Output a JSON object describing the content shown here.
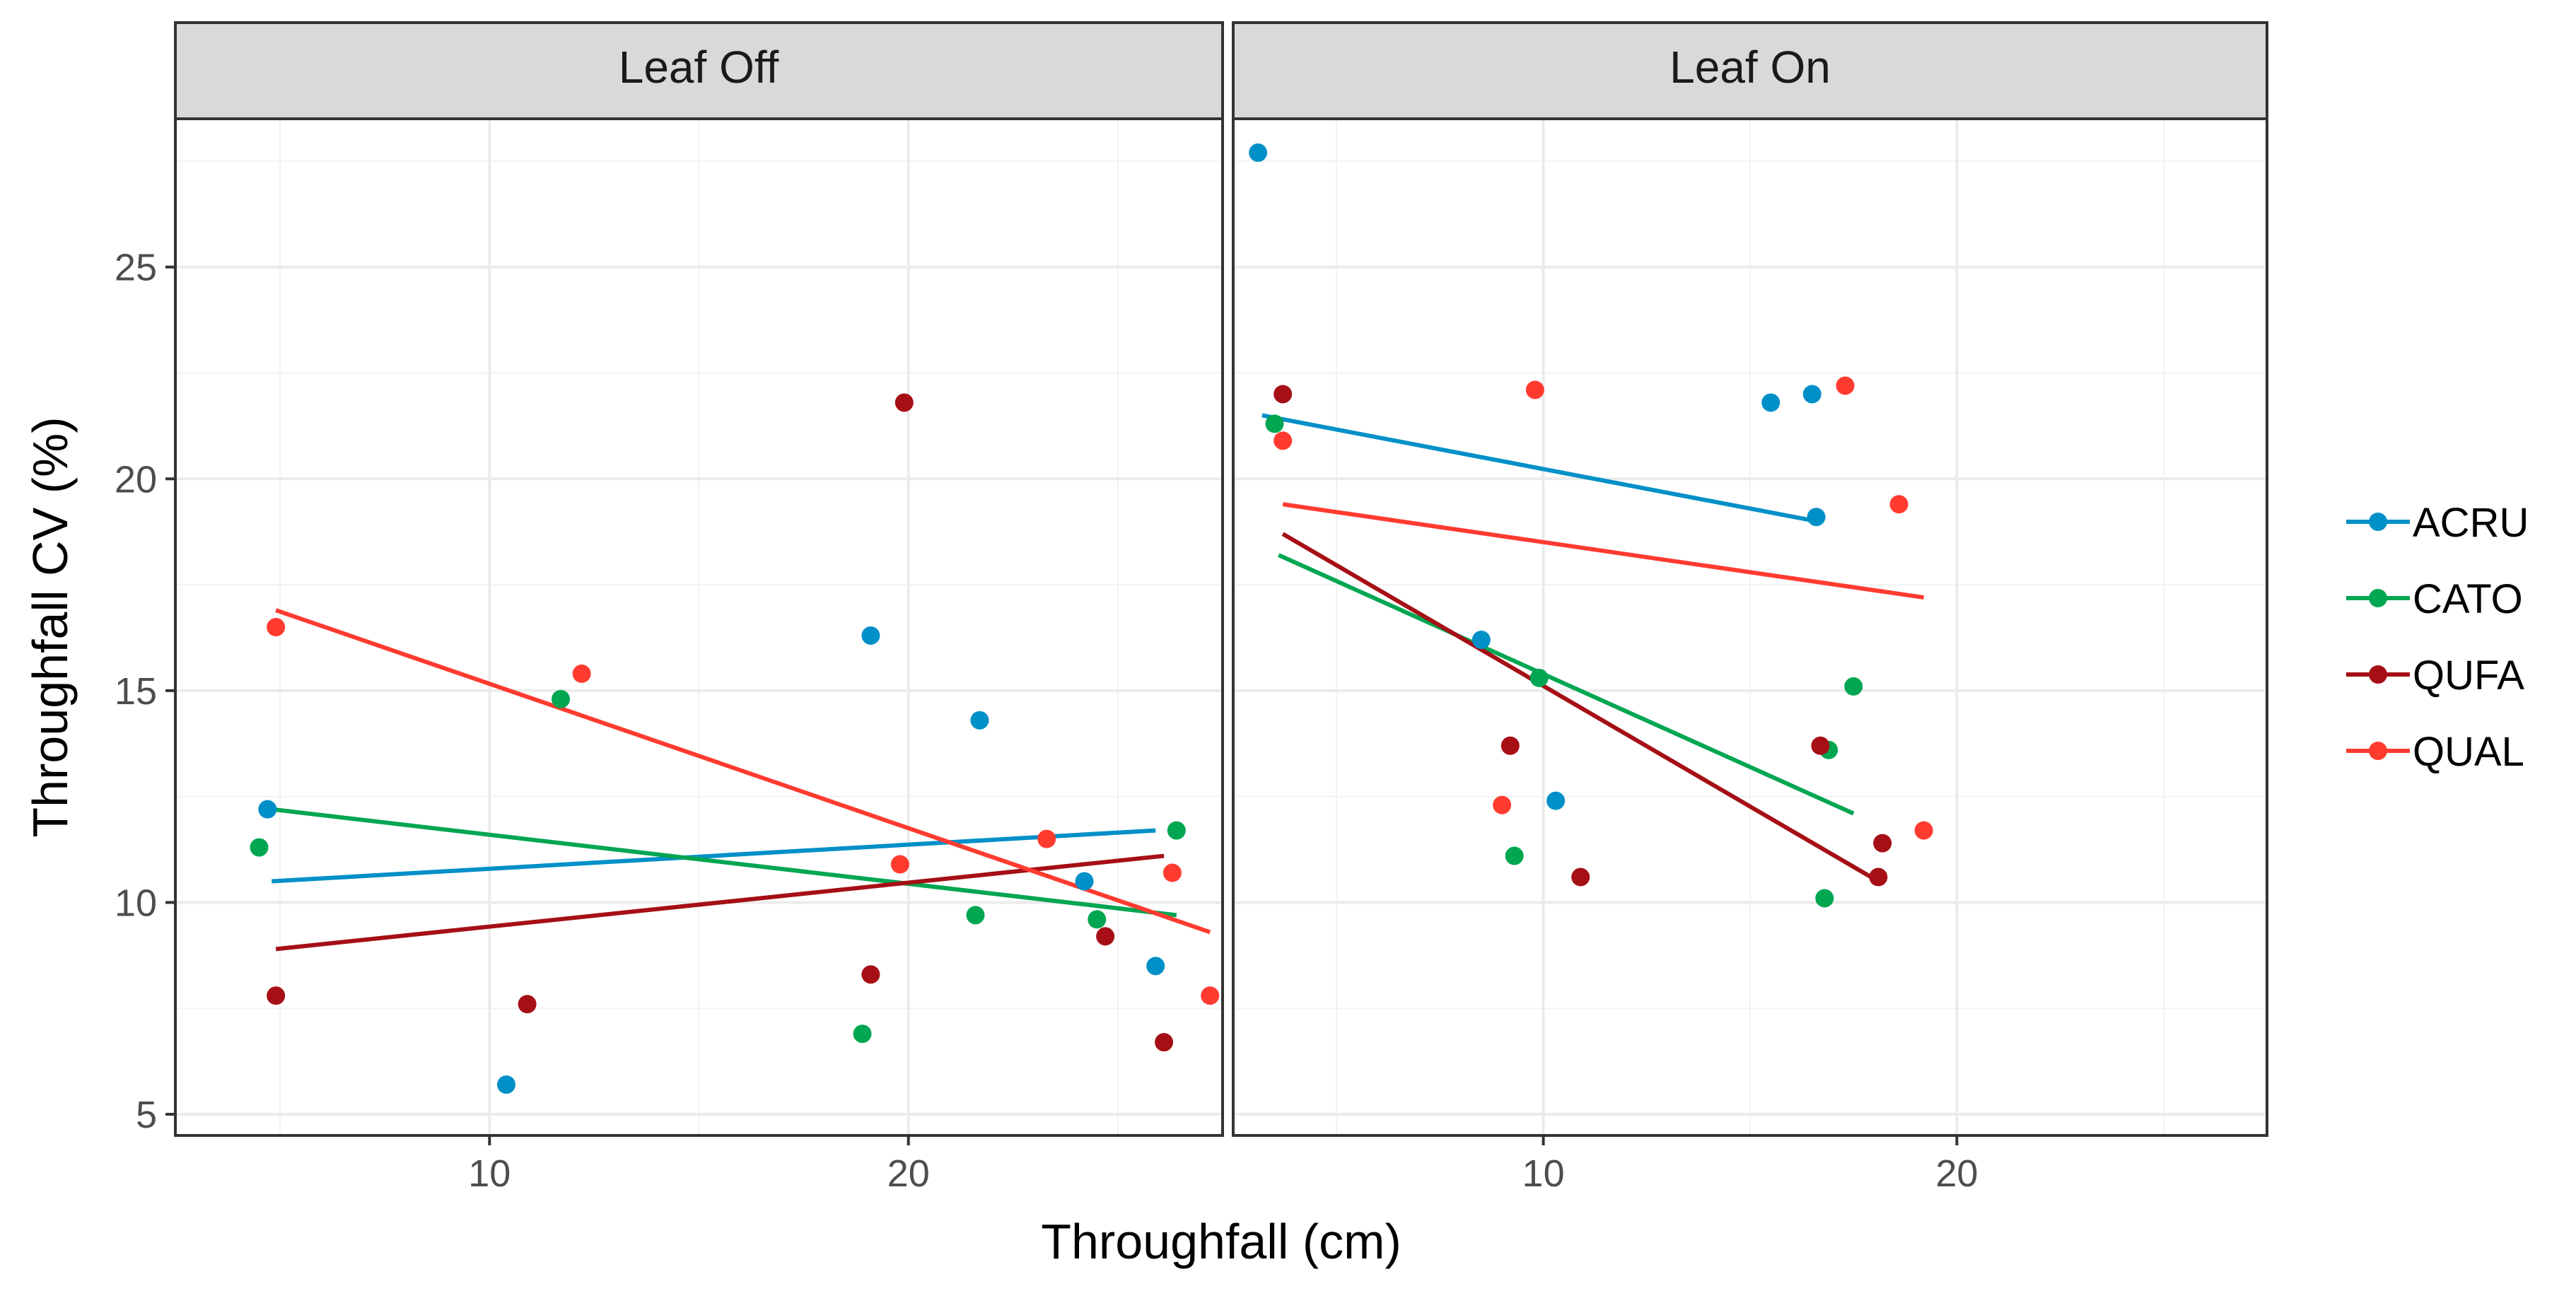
{
  "chart_data": {
    "type": "scatter",
    "xlabel": "Throughfall (cm)",
    "ylabel": "Throughfall CV (%)",
    "xlim": [
      2.5,
      27.5
    ],
    "ylim": [
      4.5,
      28.5
    ],
    "x_ticks": [
      10,
      20
    ],
    "x_tick_labels": [
      "10",
      "20"
    ],
    "y_ticks": [
      5,
      10,
      15,
      20,
      25
    ],
    "y_tick_labels": [
      "5",
      "10",
      "15",
      "20",
      "25"
    ],
    "grid": true,
    "legend_position": "right",
    "series": [
      {
        "name": "ACRU",
        "color": "#0090C8"
      },
      {
        "name": "CATO",
        "color": "#00A651"
      },
      {
        "name": "QUFA",
        "color": "#A50F15"
      },
      {
        "name": "QUAL",
        "color": "#FF3B30"
      }
    ],
    "panels": [
      {
        "title": "Leaf Off",
        "points": {
          "ACRU": [
            [
              4.7,
              12.2
            ],
            [
              10.4,
              5.7
            ],
            [
              19.1,
              16.3
            ],
            [
              21.7,
              14.3
            ],
            [
              24.2,
              10.5
            ],
            [
              25.9,
              8.5
            ]
          ],
          "CATO": [
            [
              4.5,
              11.3
            ],
            [
              11.7,
              14.8
            ],
            [
              18.9,
              6.9
            ],
            [
              21.6,
              9.7
            ],
            [
              24.5,
              9.6
            ],
            [
              26.4,
              11.7
            ]
          ],
          "QUFA": [
            [
              4.9,
              7.8
            ],
            [
              10.9,
              7.6
            ],
            [
              19.1,
              8.3
            ],
            [
              19.9,
              21.8
            ],
            [
              24.7,
              9.2
            ],
            [
              26.1,
              6.7
            ]
          ],
          "QUAL": [
            [
              4.9,
              16.5
            ],
            [
              12.2,
              15.4
            ],
            [
              19.8,
              10.9
            ],
            [
              23.3,
              11.5
            ],
            [
              26.3,
              10.7
            ],
            [
              27.2,
              7.8
            ]
          ]
        },
        "fits": {
          "ACRU": [
            [
              4.8,
              10.5
            ],
            [
              25.9,
              11.7
            ]
          ],
          "CATO": [
            [
              4.8,
              12.2
            ],
            [
              26.4,
              9.7
            ]
          ],
          "QUFA": [
            [
              4.9,
              8.9
            ],
            [
              26.1,
              11.1
            ]
          ],
          "QUAL": [
            [
              4.9,
              16.9
            ],
            [
              27.2,
              9.3
            ]
          ]
        }
      },
      {
        "title": "Leaf On",
        "points": {
          "ACRU": [
            [
              3.1,
              27.7
            ],
            [
              8.5,
              16.2
            ],
            [
              10.3,
              12.4
            ],
            [
              15.5,
              21.8
            ],
            [
              16.5,
              22.0
            ],
            [
              16.6,
              19.1
            ]
          ],
          "CATO": [
            [
              3.5,
              21.3
            ],
            [
              9.3,
              11.1
            ],
            [
              9.9,
              15.3
            ],
            [
              16.8,
              10.1
            ],
            [
              16.9,
              13.6
            ],
            [
              17.5,
              15.1
            ]
          ],
          "QUFA": [
            [
              3.7,
              22.0
            ],
            [
              9.2,
              13.7
            ],
            [
              10.9,
              10.6
            ],
            [
              16.7,
              13.7
            ],
            [
              18.1,
              10.6
            ],
            [
              18.2,
              11.4
            ]
          ],
          "QUAL": [
            [
              3.7,
              20.9
            ],
            [
              9.0,
              12.3
            ],
            [
              9.8,
              22.1
            ],
            [
              17.3,
              22.2
            ],
            [
              18.6,
              19.4
            ],
            [
              19.2,
              11.7
            ]
          ]
        },
        "fits": {
          "ACRU": [
            [
              3.2,
              21.5
            ],
            [
              16.6,
              19.0
            ]
          ],
          "CATO": [
            [
              3.6,
              18.2
            ],
            [
              17.5,
              12.1
            ]
          ],
          "QUFA": [
            [
              3.7,
              18.7
            ],
            [
              18.1,
              10.5
            ]
          ],
          "QUAL": [
            [
              3.7,
              19.4
            ],
            [
              19.2,
              17.2
            ]
          ]
        }
      }
    ]
  }
}
